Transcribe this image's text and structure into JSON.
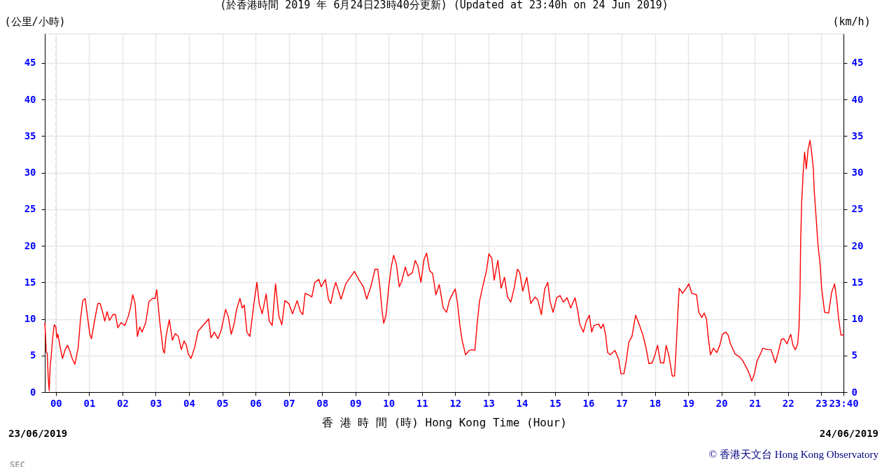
{
  "chart_data": {
    "type": "line",
    "title": "(於香港時間 2019 年 6月24日23時40分更新) (Updated at 23:40h on 24 Jun 2019)",
    "xlabel": "香 港 時 間 (時) Hong Kong Time (Hour)",
    "ylabel": "(公里/小時)",
    "y2label": "(km/h)",
    "annotations": [
      "23/06/2019",
      "24/06/2019",
      "© 香港天文台 Hong Kong Observatory",
      "SEC"
    ],
    "xlim": [
      -0.333,
      23.667
    ],
    "xticks": [
      {
        "value": 0,
        "label": "00"
      },
      {
        "value": 1,
        "label": "01"
      },
      {
        "value": 2,
        "label": "02"
      },
      {
        "value": 3,
        "label": "03"
      },
      {
        "value": 4,
        "label": "04"
      },
      {
        "value": 5,
        "label": "05"
      },
      {
        "value": 6,
        "label": "06"
      },
      {
        "value": 7,
        "label": "07"
      },
      {
        "value": 8,
        "label": "08"
      },
      {
        "value": 9,
        "label": "09"
      },
      {
        "value": 10,
        "label": "10"
      },
      {
        "value": 11,
        "label": "11"
      },
      {
        "value": 12,
        "label": "12"
      },
      {
        "value": 13,
        "label": "13"
      },
      {
        "value": 14,
        "label": "14"
      },
      {
        "value": 15,
        "label": "15"
      },
      {
        "value": 16,
        "label": "16"
      },
      {
        "value": 17,
        "label": "17"
      },
      {
        "value": 18,
        "label": "18"
      },
      {
        "value": 19,
        "label": "19"
      },
      {
        "value": 20,
        "label": "20"
      },
      {
        "value": 21,
        "label": "21"
      },
      {
        "value": 22,
        "label": "22"
      },
      {
        "value": 23,
        "label": "23"
      },
      {
        "value": 23.667,
        "label": "23:40"
      }
    ],
    "ylim": [
      0,
      49
    ],
    "yticks": [
      0,
      5,
      10,
      15,
      20,
      25,
      30,
      35,
      40,
      45
    ],
    "y2lim": [
      0,
      49
    ],
    "y2ticks": [
      0,
      5,
      10,
      15,
      20,
      25,
      30,
      35,
      40,
      45
    ],
    "grid": true,
    "ref_lines": [
      {
        "axis": "x",
        "value": 0,
        "color": "#dddddd",
        "line_style": "dashed"
      }
    ],
    "x": [
      -0.333,
      -0.31,
      -0.29,
      -0.26,
      -0.23,
      -0.2,
      -0.17,
      -0.14,
      -0.1,
      -0.05,
      0,
      0.03,
      0.06,
      0.13,
      0.2,
      0.28,
      0.35,
      0.42,
      0.49,
      0.57,
      0.67,
      0.74,
      0.81,
      0.88,
      0.95,
      1.02,
      1.07,
      1.16,
      1.26,
      1.33,
      1.4,
      1.47,
      1.54,
      1.61,
      1.72,
      1.79,
      1.86,
      1.96,
      2.07,
      2.17,
      2.24,
      2.31,
      2.38,
      2.45,
      2.52,
      2.59,
      2.7,
      2.8,
      2.91,
      2.98,
      3.03,
      3.12,
      3.22,
      3.26,
      3.31,
      3.36,
      3.41,
      3.5,
      3.59,
      3.68,
      3.77,
      3.85,
      3.92,
      3.98,
      4.06,
      4.17,
      4.27,
      4.38,
      4.48,
      4.59,
      4.66,
      4.76,
      4.87,
      4.97,
      5.1,
      5.18,
      5.27,
      5.36,
      5.43,
      5.53,
      5.6,
      5.66,
      5.74,
      5.83,
      5.95,
      6.04,
      6.11,
      6.2,
      6.32,
      6.41,
      6.5,
      6.6,
      6.7,
      6.79,
      6.88,
      7.0,
      7.11,
      7.25,
      7.35,
      7.42,
      7.49,
      7.59,
      7.69,
      7.78,
      7.9,
      7.97,
      8.1,
      8.19,
      8.26,
      8.34,
      8.41,
      8.57,
      8.71,
      8.85,
      8.97,
      9.1,
      9.24,
      9.34,
      9.47,
      9.59,
      9.67,
      9.74,
      9.8,
      9.85,
      9.92,
      10.01,
      10.08,
      10.15,
      10.23,
      10.32,
      10.39,
      10.5,
      10.58,
      10.71,
      10.8,
      10.88,
      10.97,
      11.06,
      11.14,
      11.23,
      11.32,
      11.42,
      11.52,
      11.64,
      11.74,
      11.83,
      11.93,
      12.0,
      12.07,
      12.14,
      12.21,
      12.31,
      12.42,
      12.52,
      12.59,
      12.66,
      12.73,
      12.84,
      12.94,
      13.01,
      13.1,
      13.17,
      13.28,
      13.38,
      13.48,
      13.57,
      13.67,
      13.77,
      13.87,
      13.94,
      14.03,
      14.15,
      14.27,
      14.4,
      14.48,
      14.59,
      14.69,
      14.78,
      14.85,
      14.94,
      15.05,
      15.15,
      15.25,
      15.36,
      15.47,
      15.6,
      15.69,
      15.74,
      15.85,
      15.94,
      16.03,
      16.1,
      16.17,
      16.31,
      16.38,
      16.45,
      16.52,
      16.58,
      16.66,
      16.8,
      16.91,
      16.98,
      17.07,
      17.14,
      17.22,
      17.31,
      17.42,
      17.5,
      17.64,
      17.73,
      17.82,
      17.92,
      18.01,
      18.08,
      18.17,
      18.27,
      18.34,
      18.43,
      18.52,
      18.59,
      18.64,
      18.69,
      18.73,
      18.83,
      18.94,
      19.02,
      19.11,
      19.25,
      19.32,
      19.41,
      19.48,
      19.55,
      19.6,
      19.67,
      19.76,
      19.86,
      19.95,
      20.03,
      20.13,
      20.2,
      20.27,
      20.41,
      20.55,
      20.65,
      20.79,
      20.86,
      20.91,
      20.99,
      21.07,
      21.17,
      21.24,
      21.38,
      21.49,
      21.62,
      21.71,
      21.8,
      21.87,
      21.97,
      22.08,
      22.15,
      22.22,
      22.29,
      22.33,
      22.36,
      22.38,
      22.41,
      22.45,
      22.5,
      22.55,
      22.6,
      22.66,
      22.71,
      22.76,
      22.79,
      22.85,
      22.9,
      22.96,
      23.01,
      23.1,
      23.22,
      23.31,
      23.4,
      23.47,
      23.52,
      23.59,
      23.667
    ],
    "series": [
      {
        "color": "#ff0000",
        "values": [
          9.4,
          7.7,
          5.5,
          5.3,
          1.9,
          0.2,
          3.7,
          4.9,
          7.3,
          9.2,
          8.9,
          7.4,
          7.9,
          6.1,
          4.6,
          5.8,
          6.4,
          5.6,
          4.6,
          3.8,
          6.1,
          10.0,
          12.5,
          12.8,
          10.3,
          7.9,
          7.3,
          9.7,
          12.1,
          12.1,
          11.0,
          9.7,
          11.0,
          9.8,
          10.6,
          10.6,
          8.8,
          9.5,
          9.1,
          10.3,
          11.5,
          13.3,
          12.1,
          7.6,
          8.9,
          8.2,
          9.5,
          12.4,
          12.8,
          12.8,
          14.0,
          9.7,
          5.8,
          5.3,
          7.6,
          8.8,
          9.9,
          7.1,
          8.0,
          7.6,
          5.8,
          7.0,
          6.4,
          5.2,
          4.6,
          6.1,
          8.3,
          8.9,
          9.4,
          10.0,
          7.4,
          8.2,
          7.3,
          8.5,
          11.3,
          10.3,
          7.9,
          9.4,
          11.3,
          12.8,
          11.5,
          11.9,
          8.2,
          7.6,
          12.1,
          15.0,
          12.1,
          10.7,
          13.4,
          9.7,
          9.1,
          14.8,
          10.4,
          9.2,
          12.5,
          12.1,
          10.7,
          12.5,
          11.0,
          10.6,
          13.5,
          13.3,
          13.0,
          15.0,
          15.4,
          14.4,
          15.4,
          12.7,
          12.1,
          13.9,
          15.0,
          12.7,
          14.8,
          15.7,
          16.5,
          15.4,
          14.4,
          12.7,
          14.5,
          16.8,
          16.8,
          14.2,
          11.2,
          9.4,
          10.5,
          14.7,
          17.2,
          18.7,
          17.5,
          14.4,
          15.1,
          17.1,
          15.9,
          16.3,
          18.0,
          17.2,
          15.0,
          18.1,
          19.0,
          16.6,
          16.2,
          13.3,
          14.7,
          11.5,
          10.9,
          12.6,
          13.5,
          14.1,
          12.1,
          9.1,
          7.0,
          5.1,
          5.7,
          5.8,
          5.7,
          9.4,
          12.4,
          14.7,
          16.6,
          18.9,
          18.3,
          15.3,
          18.0,
          14.2,
          15.7,
          13.0,
          12.3,
          14.2,
          16.8,
          16.3,
          13.8,
          15.7,
          12.1,
          13.0,
          12.6,
          10.6,
          14.1,
          15.0,
          12.4,
          10.9,
          12.9,
          13.2,
          12.3,
          12.9,
          11.5,
          12.9,
          10.9,
          9.3,
          8.2,
          9.7,
          10.5,
          8.2,
          9.1,
          9.3,
          8.7,
          9.3,
          7.8,
          5.4,
          5.1,
          5.7,
          4.5,
          2.5,
          2.5,
          4.3,
          6.9,
          7.6,
          10.5,
          9.6,
          7.8,
          6.1,
          3.9,
          4.0,
          5.2,
          6.4,
          4.0,
          4.0,
          6.4,
          4.8,
          2.2,
          2.2,
          6.1,
          10.9,
          14.2,
          13.5,
          14.2,
          14.8,
          13.5,
          13.3,
          10.9,
          10.2,
          10.8,
          10.0,
          7.6,
          5.1,
          6.0,
          5.4,
          6.4,
          7.9,
          8.2,
          7.8,
          6.6,
          5.2,
          4.8,
          4.2,
          3.0,
          2.2,
          1.5,
          2.5,
          4.3,
          5.2,
          6.0,
          5.8,
          5.8,
          4.0,
          5.5,
          7.2,
          7.3,
          6.6,
          7.9,
          6.4,
          5.8,
          6.6,
          8.8,
          13.5,
          20.7,
          25.9,
          29.6,
          32.8,
          30.5,
          33.1,
          34.4,
          32.8,
          30.5,
          27.4,
          23.5,
          20.1,
          17.7,
          14.2,
          10.9,
          10.8,
          13.6,
          14.8,
          12.4,
          10.0,
          7.8,
          7.8
        ]
      }
    ]
  }
}
